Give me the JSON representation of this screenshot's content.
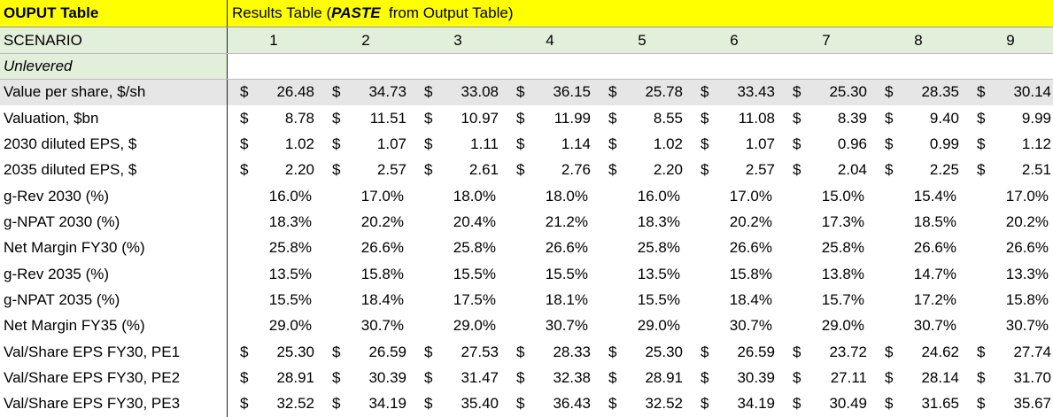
{
  "header": {
    "title": "OUPUT Table",
    "results_title": [
      "Results Table (",
      "PASTE",
      "  from Output Table)"
    ]
  },
  "scenario_label": "SCENARIO",
  "scenarios": [
    "1",
    "2",
    "3",
    "4",
    "5",
    "6",
    "7",
    "8",
    "9"
  ],
  "section_label": "Unlevered",
  "rows": [
    {
      "label": "Value per share, $/sh",
      "currency": "$",
      "values": [
        "26.48",
        "34.73",
        "33.08",
        "36.15",
        "25.78",
        "33.43",
        "25.30",
        "28.35",
        "30.14"
      ]
    },
    {
      "label": "Valuation, $bn",
      "currency": "$",
      "values": [
        "8.78",
        "11.51",
        "10.97",
        "11.99",
        "8.55",
        "11.08",
        "8.39",
        "9.40",
        "9.99"
      ]
    },
    {
      "label": "2030 diluted EPS, $",
      "currency": "$",
      "values": [
        "1.02",
        "1.07",
        "1.11",
        "1.14",
        "1.02",
        "1.07",
        "0.96",
        "0.99",
        "1.12"
      ]
    },
    {
      "label": "2035 diluted EPS, $",
      "currency": "$",
      "values": [
        "2.20",
        "2.57",
        "2.61",
        "2.76",
        "2.20",
        "2.57",
        "2.04",
        "2.25",
        "2.51"
      ]
    },
    {
      "label": "g-Rev 2030 (%)",
      "values": [
        "16.0%",
        "17.0%",
        "18.0%",
        "18.0%",
        "16.0%",
        "17.0%",
        "15.0%",
        "15.4%",
        "17.0%"
      ]
    },
    {
      "label": "g-NPAT 2030 (%)",
      "values": [
        "18.3%",
        "20.2%",
        "20.4%",
        "21.2%",
        "18.3%",
        "20.2%",
        "17.3%",
        "18.5%",
        "20.2%"
      ]
    },
    {
      "label": "Net Margin FY30 (%)",
      "values": [
        "25.8%",
        "26.6%",
        "25.8%",
        "26.6%",
        "25.8%",
        "26.6%",
        "25.8%",
        "26.6%",
        "26.6%"
      ]
    },
    {
      "label": "g-Rev 2035 (%)",
      "values": [
        "13.5%",
        "15.8%",
        "15.5%",
        "15.5%",
        "13.5%",
        "15.8%",
        "13.8%",
        "14.7%",
        "13.3%"
      ]
    },
    {
      "label": "g-NPAT 2035 (%)",
      "values": [
        "15.5%",
        "18.4%",
        "17.5%",
        "18.1%",
        "15.5%",
        "18.4%",
        "15.7%",
        "17.2%",
        "15.8%"
      ]
    },
    {
      "label": "Net Margin FY35 (%)",
      "values": [
        "29.0%",
        "30.7%",
        "29.0%",
        "30.7%",
        "29.0%",
        "30.7%",
        "29.0%",
        "30.7%",
        "30.7%"
      ]
    },
    {
      "label": "Val/Share EPS FY30, PE1",
      "currency": "$",
      "values": [
        "25.30",
        "26.59",
        "27.53",
        "28.33",
        "25.30",
        "26.59",
        "23.72",
        "24.62",
        "27.74"
      ]
    },
    {
      "label": "Val/Share EPS FY30, PE2",
      "currency": "$",
      "values": [
        "28.91",
        "30.39",
        "31.47",
        "32.38",
        "28.91",
        "30.39",
        "27.11",
        "28.14",
        "31.70"
      ]
    },
    {
      "label": "Val/Share EPS FY30, PE3",
      "currency": "$",
      "values": [
        "32.52",
        "34.19",
        "35.40",
        "36.43",
        "32.52",
        "34.19",
        "30.49",
        "31.65",
        "35.67"
      ]
    }
  ]
}
